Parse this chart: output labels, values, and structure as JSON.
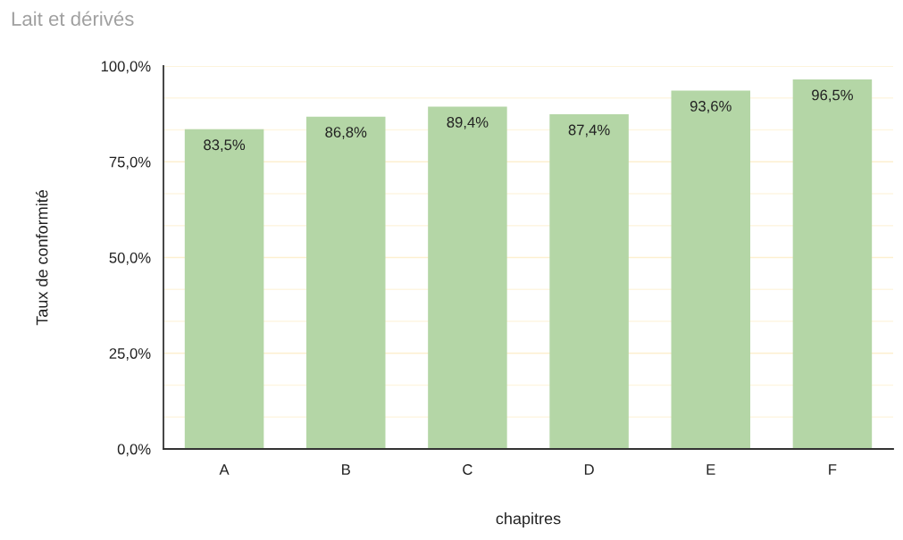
{
  "chart_data": {
    "type": "bar",
    "title": "Lait et dérivés",
    "xlabel": "chapitres",
    "ylabel": "Taux de conformité",
    "categories": [
      "A",
      "B",
      "C",
      "D",
      "E",
      "F"
    ],
    "values": [
      83.5,
      86.8,
      89.4,
      87.4,
      93.6,
      96.5
    ],
    "value_labels": [
      "83,5%",
      "86,8%",
      "89,4%",
      "87,4%",
      "93,6%",
      "96,5%"
    ],
    "color": "#b4d6a6",
    "ylim": [
      0,
      100
    ],
    "yticks": [
      {
        "value": 0,
        "label": "0,0%"
      },
      {
        "value": 25,
        "label": "25,0%"
      },
      {
        "value": 50,
        "label": "50,0%"
      },
      {
        "value": 75,
        "label": "75,0%"
      },
      {
        "value": 100,
        "label": "100,0%"
      }
    ],
    "grid": "y"
  }
}
